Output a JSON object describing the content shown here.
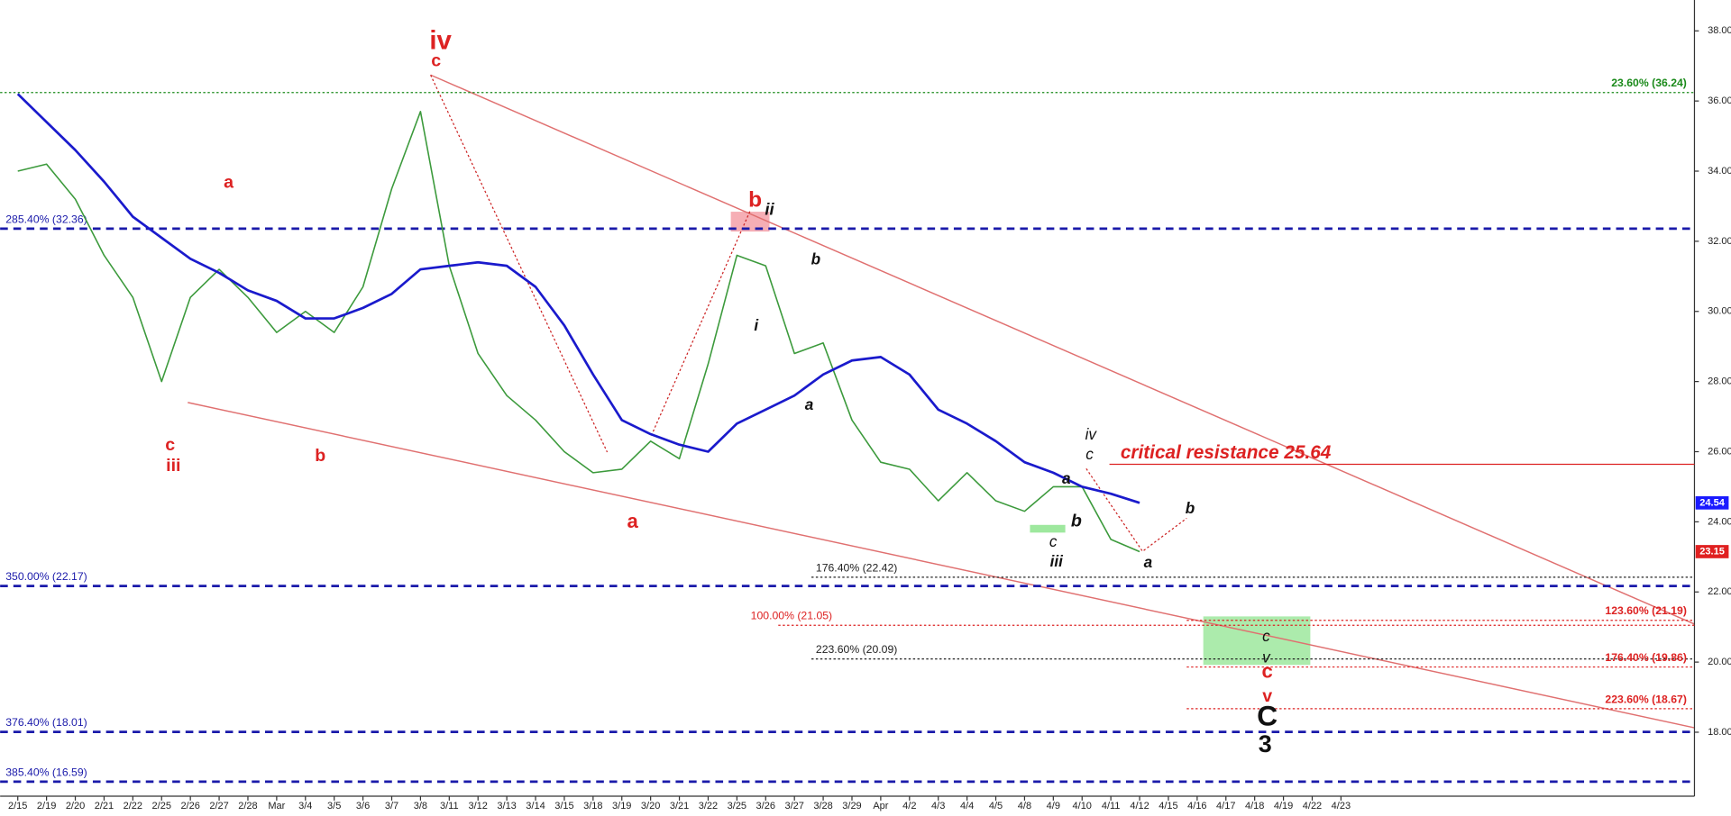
{
  "chart_data": {
    "type": "line",
    "categories": [
      "2/15",
      "2/19",
      "2/20",
      "2/21",
      "2/22",
      "2/25",
      "2/26",
      "2/27",
      "2/28",
      "Mar",
      "3/4",
      "3/5",
      "3/6",
      "3/7",
      "3/8",
      "3/11",
      "3/12",
      "3/13",
      "3/14",
      "3/15",
      "3/18",
      "3/19",
      "3/20",
      "3/21",
      "3/22",
      "3/25",
      "3/26",
      "3/27",
      "3/28",
      "3/29",
      "Apr",
      "4/2",
      "4/3",
      "4/4",
      "4/5",
      "4/8",
      "4/9",
      "4/10",
      "4/11",
      "4/12",
      "4/15",
      "4/16",
      "4/17",
      "4/18",
      "4/19",
      "4/22",
      "4/23"
    ],
    "series": [
      {
        "color": "#3c9a3c",
        "values": [
          34.0,
          34.2,
          33.2,
          31.6,
          30.4,
          28.0,
          30.4,
          31.2,
          30.4,
          29.4,
          30.0,
          29.4,
          30.7,
          33.5,
          35.7,
          31.3,
          28.8,
          27.6,
          26.9,
          26.0,
          25.4,
          25.5,
          26.3,
          25.8,
          28.5,
          31.6,
          31.3,
          28.8,
          29.1,
          26.9,
          25.7,
          25.5,
          24.6,
          25.4,
          24.6,
          24.3,
          25.0,
          25.0,
          23.5,
          23.15,
          null,
          null,
          null,
          null,
          null,
          null,
          null
        ]
      },
      {
        "color": "#1a1acc",
        "values": [
          36.2,
          35.4,
          34.6,
          33.7,
          32.7,
          32.1,
          31.5,
          31.1,
          30.6,
          30.3,
          29.8,
          29.8,
          30.1,
          30.5,
          31.2,
          31.3,
          31.4,
          31.3,
          30.7,
          29.6,
          28.2,
          26.9,
          26.5,
          26.2,
          26.0,
          26.8,
          27.2,
          27.6,
          28.2,
          28.6,
          28.7,
          28.2,
          27.2,
          26.8,
          26.3,
          25.7,
          25.4,
          25.0,
          24.8,
          24.54,
          null,
          null,
          null,
          null,
          null,
          null,
          null
        ]
      }
    ],
    "ylim": [
      16.24,
      38.88
    ],
    "yticks": [
      {
        "value": 18,
        "label": "18.00"
      },
      {
        "value": 20,
        "label": "20.00"
      },
      {
        "value": 22,
        "label": "22.00"
      },
      {
        "value": 24,
        "label": "24.00"
      },
      {
        "value": 26,
        "label": "26.00"
      },
      {
        "value": 28,
        "label": "28.00"
      },
      {
        "value": 30,
        "label": "30.00"
      },
      {
        "value": 32,
        "label": "32.00"
      },
      {
        "value": 34,
        "label": "34.00"
      },
      {
        "value": 36,
        "label": "36.00"
      },
      {
        "value": 38,
        "label": "38.00"
      }
    ],
    "grid": false,
    "levels": [
      {
        "label": "23.60% (36.24)",
        "value": 36.24,
        "color": "#1a8a1a",
        "style": "dotted"
      },
      {
        "label": "285.40% (32.36)",
        "value": 32.36,
        "color": "#1a1aaa",
        "style": "dashed"
      },
      {
        "label": "350.00% (22.17)",
        "value": 22.17,
        "color": "#1a1aaa",
        "style": "dashed"
      },
      {
        "label": "376.40% (18.01)",
        "value": 18.01,
        "color": "#1a1aaa",
        "style": "dashed"
      },
      {
        "label": "385.40% (16.59)",
        "value": 16.59,
        "color": "#1a1aaa",
        "style": "dashed"
      },
      {
        "label": "176.40% (22.42)",
        "value": 22.42,
        "color": "#222222",
        "style": "dotted"
      },
      {
        "label": "100.00% (21.05)",
        "value": 21.05,
        "color": "#dd2222",
        "style": "dotted"
      },
      {
        "label": "223.60% (20.09)",
        "value": 20.09,
        "color": "#222222",
        "style": "dotted"
      },
      {
        "label": "123.60% (21.19)",
        "value": 21.19,
        "color": "#dd2222",
        "style": "dotted"
      },
      {
        "label": "176.40% (19.86)",
        "value": 19.86,
        "color": "#dd2222",
        "style": "dotted"
      },
      {
        "label": "223.60% (18.67)",
        "value": 18.67,
        "color": "#dd2222",
        "style": "dotted"
      }
    ],
    "resistance": {
      "label": "critical resistance 25.64",
      "value": 25.64,
      "color": "#dd2222"
    },
    "price_tags": [
      {
        "value": 24.54,
        "color": "#1a1aff"
      },
      {
        "value": 23.15,
        "color": "#e02020"
      }
    ],
    "annotations": [
      {
        "text": "iv",
        "color": "#dd2222"
      },
      {
        "text": "c",
        "color": "#dd2222"
      },
      {
        "text": "a",
        "color": "#dd2222"
      },
      {
        "text": "c",
        "color": "#dd2222"
      },
      {
        "text": "iii",
        "color": "#dd2222"
      },
      {
        "text": "b",
        "color": "#dd2222"
      },
      {
        "text": "b",
        "color": "#dd2222"
      },
      {
        "text": "ii",
        "color": "#111111"
      },
      {
        "text": "a",
        "color": "#dd2222"
      },
      {
        "text": "b",
        "color": "#111111"
      },
      {
        "text": "i",
        "color": "#111111"
      },
      {
        "text": "a",
        "color": "#111111"
      },
      {
        "text": "iv",
        "color": "#111111"
      },
      {
        "text": "c",
        "color": "#111111"
      },
      {
        "text": "a",
        "color": "#111111"
      },
      {
        "text": "b",
        "color": "#111111"
      },
      {
        "text": "c",
        "color": "#111111"
      },
      {
        "text": "iii",
        "color": "#111111"
      },
      {
        "text": "a",
        "color": "#111111"
      },
      {
        "text": "b",
        "color": "#111111"
      },
      {
        "text": "c",
        "color": "#111111"
      },
      {
        "text": "v",
        "color": "#111111"
      },
      {
        "text": "c",
        "color": "#dd2222"
      },
      {
        "text": "v",
        "color": "#dd2222"
      },
      {
        "text": "C",
        "color": "#111111"
      },
      {
        "text": "3",
        "color": "#111111"
      }
    ]
  }
}
